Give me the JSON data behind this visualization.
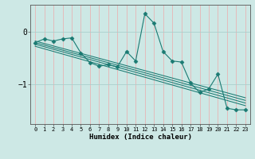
{
  "title": "",
  "xlabel": "Humidex (Indice chaleur)",
  "background_color": "#cde8e5",
  "line_color": "#1a7a72",
  "vgrid_color": "#e8b4b4",
  "hgrid_color": "#b8d8d4",
  "xmin": -0.5,
  "xmax": 23.5,
  "ymin": -1.75,
  "ymax": 0.52,
  "yticks": [
    0,
    -1
  ],
  "ytick_labels": [
    "0",
    "−1"
  ],
  "data_x": [
    0,
    1,
    2,
    3,
    4,
    5,
    6,
    7,
    8,
    9,
    10,
    11,
    12,
    13,
    14,
    15,
    16,
    17,
    18,
    19,
    20,
    21,
    22,
    23
  ],
  "data_y": [
    -0.2,
    -0.13,
    -0.17,
    -0.13,
    -0.11,
    -0.4,
    -0.58,
    -0.65,
    -0.62,
    -0.66,
    -0.37,
    -0.55,
    0.35,
    0.17,
    -0.37,
    -0.55,
    -0.57,
    -0.97,
    -1.15,
    -1.08,
    -0.8,
    -1.45,
    -1.48,
    -1.48
  ],
  "trend_lines": [
    {
      "x0": 0,
      "y0": -0.17,
      "x1": 23,
      "y1": -1.25
    },
    {
      "x0": 0,
      "y0": -0.2,
      "x1": 23,
      "y1": -1.3
    },
    {
      "x0": 0,
      "y0": -0.23,
      "x1": 23,
      "y1": -1.35
    },
    {
      "x0": 0,
      "y0": -0.27,
      "x1": 23,
      "y1": -1.4
    }
  ],
  "xtick_labels": [
    "0",
    "1",
    "2",
    "3",
    "4",
    "5",
    "6",
    "7",
    "8",
    "9",
    "10",
    "11",
    "12",
    "13",
    "14",
    "15",
    "16",
    "17",
    "18",
    "19",
    "20",
    "21",
    "22",
    "23"
  ]
}
